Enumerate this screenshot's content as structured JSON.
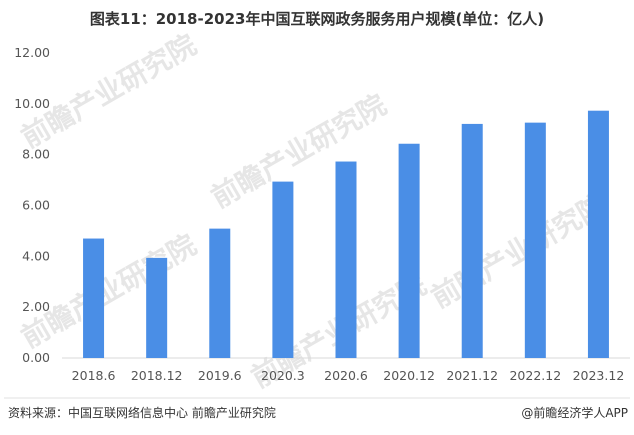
{
  "chart_data": {
    "type": "bar",
    "title": "图表11：2018-2023年中国互联网政务服务用户规模(单位：亿人)",
    "categories": [
      "2018.6",
      "2018.12",
      "2019.6",
      "2020.3",
      "2020.6",
      "2020.12",
      "2021.12",
      "2022.12",
      "2023.12"
    ],
    "values": [
      4.7,
      3.94,
      5.09,
      6.94,
      7.73,
      8.43,
      9.21,
      9.26,
      9.73
    ],
    "ylim": [
      0,
      12
    ],
    "yticks": [
      "0.00",
      "2.00",
      "4.00",
      "6.00",
      "8.00",
      "10.00",
      "12.00"
    ],
    "grid": false,
    "bar_color": "#4a8ee6"
  },
  "footer": {
    "source": "资料来源：中国互联网络信息中心 前瞻产业研究院",
    "brand": "@前瞻经济学人APP"
  },
  "watermark": "前瞻产业研究院"
}
